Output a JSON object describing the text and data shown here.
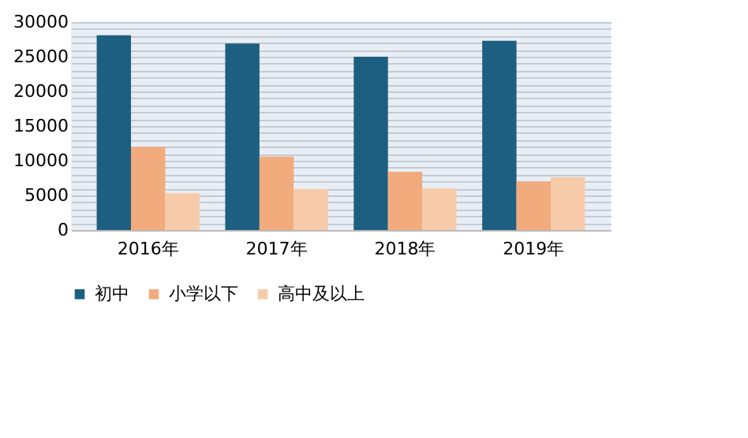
{
  "chart_data": {
    "type": "bar",
    "categories": [
      "2016年",
      "2017年",
      "2018年",
      "2019年"
    ],
    "series": [
      {
        "name": "初中",
        "color": "#1d5f80",
        "values": [
          28100,
          26900,
          25000,
          27300
        ]
      },
      {
        "name": "小学以下",
        "color": "#f2ab7c",
        "values": [
          12000,
          10600,
          8400,
          7000
        ]
      },
      {
        "name": "高中及以上",
        "color": "#f7cba9",
        "values": [
          5300,
          5900,
          6000,
          7600
        ]
      }
    ],
    "ylim": [
      0,
      30000
    ],
    "yticks": [
      0,
      {
        "value": 1000,
        "label": null
      },
      {
        "value": 2000,
        "label": null
      },
      {
        "value": 3000,
        "label": null
      },
      {
        "value": 4000,
        "label": null
      },
      5000,
      {
        "value": 6000,
        "label": null
      },
      {
        "value": 7000,
        "label": null
      },
      {
        "value": 8000,
        "label": null
      },
      {
        "value": 9000,
        "label": null
      },
      10000,
      {
        "value": 11000,
        "label": null
      },
      {
        "value": 12000,
        "label": null
      },
      {
        "value": 13000,
        "label": null
      },
      {
        "value": 14000,
        "label": null
      },
      15000,
      {
        "value": 16000,
        "label": null
      },
      {
        "value": 17000,
        "label": null
      },
      {
        "value": 18000,
        "label": null
      },
      {
        "value": 19000,
        "label": null
      },
      20000,
      {
        "value": 21000,
        "label": null
      },
      {
        "value": 22000,
        "label": null
      },
      {
        "value": 23000,
        "label": null
      },
      {
        "value": 24000,
        "label": null
      },
      25000,
      {
        "value": 26000,
        "label": null
      },
      {
        "value": 27000,
        "label": null
      },
      {
        "value": 28000,
        "label": null
      },
      {
        "value": 29000,
        "label": null
      },
      30000
    ],
    "grid": "y",
    "legend": "bottom"
  }
}
